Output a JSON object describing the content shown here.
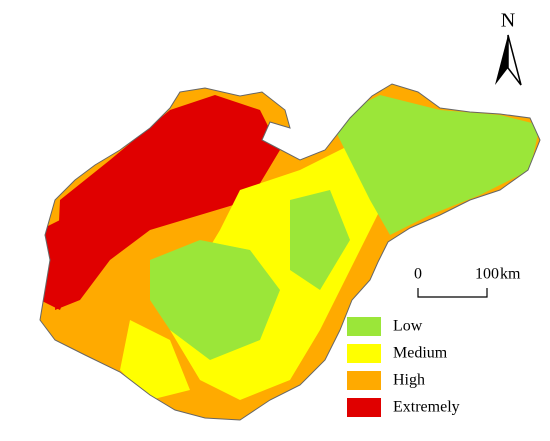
{
  "map": {
    "north_label": "N",
    "scale_bar": {
      "start": "0",
      "end": "100",
      "unit": "km"
    },
    "legend": [
      {
        "label": "Low",
        "color": "#9be639"
      },
      {
        "label": "Medium",
        "color": "#ffff00"
      },
      {
        "label": "High",
        "color": "#ffaa00"
      },
      {
        "label": "Extremely",
        "color": "#e00000"
      }
    ]
  }
}
